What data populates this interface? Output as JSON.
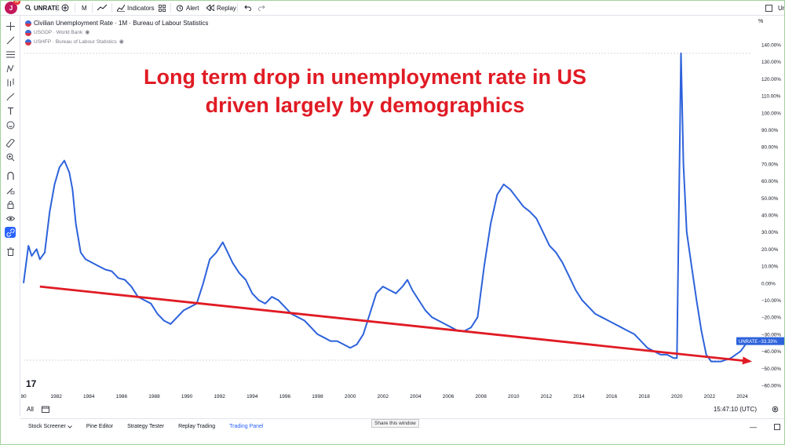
{
  "topbar": {
    "avatar_letter": "J",
    "avatar_badge": "11",
    "symbol": "UNRATE",
    "interval": "M",
    "indicators_label": "Indicators",
    "alert_label": "Alert",
    "replay_label": "Replay",
    "right_text": "Ur"
  },
  "legend": {
    "main": "Civilian Unemployment Rate · 1M · Bureau of Labour Statistics",
    "compare_1": "USGDP · World Bank",
    "compare_2": "USHFP · Bureau of Labour Statistics"
  },
  "annotation": {
    "line1": "Long term drop in unemployment rate in US",
    "line2": "driven largely by demographics"
  },
  "axis": {
    "unit": "%",
    "price_label": "UNRATE",
    "price_value": "−33.33%",
    "time": "15:47:10 (UTC)",
    "range_all": "All"
  },
  "bottombar": {
    "tabs": [
      "Stock Screener",
      "Pine Editor",
      "Strategy Tester",
      "Replay Trading",
      "Trading Panel"
    ],
    "share": "Share this window"
  },
  "colors": {
    "series": "#2d62db",
    "trend": "#e01b24",
    "label_bg": "#2d62db"
  },
  "chart_data": {
    "type": "line",
    "title": "Civilian Unemployment Rate · 1M · Bureau of Labour Statistics",
    "ylabel": "%",
    "ylim": [
      -60,
      140
    ],
    "y_ticks": [
      140,
      130,
      120,
      110,
      100,
      90,
      80,
      70,
      60,
      50,
      40,
      30,
      20,
      10,
      0,
      -10,
      -20,
      -30,
      -40,
      -50,
      -60
    ],
    "x_ticks": [
      "80",
      "1982",
      "1984",
      "1986",
      "1988",
      "1990",
      "1992",
      "1994",
      "1996",
      "1998",
      "2000",
      "2002",
      "2004",
      "2006",
      "2008",
      "2010",
      "2012",
      "2014",
      "2016",
      "2018",
      "2020",
      "2022",
      "2024"
    ],
    "xlim": [
      1980,
      2024.6
    ],
    "series": [
      {
        "name": "UNRATE",
        "x": [
          1980.0,
          1980.3,
          1980.5,
          1980.8,
          1981.0,
          1981.3,
          1981.6,
          1981.9,
          1982.2,
          1982.5,
          1982.8,
          1983.0,
          1983.2,
          1983.5,
          1983.8,
          1984.2,
          1984.6,
          1985.0,
          1985.4,
          1985.8,
          1986.2,
          1986.6,
          1987.0,
          1987.4,
          1987.8,
          1988.2,
          1988.6,
          1989.0,
          1989.4,
          1989.8,
          1990.2,
          1990.6,
          1991.0,
          1991.4,
          1991.8,
          1992.2,
          1992.5,
          1992.8,
          1993.2,
          1993.6,
          1994.0,
          1994.4,
          1994.8,
          1995.2,
          1995.6,
          1996.0,
          1996.4,
          1996.8,
          1997.2,
          1997.6,
          1998.0,
          1998.4,
          1998.8,
          1999.2,
          1999.6,
          2000.0,
          2000.4,
          2000.8,
          2001.2,
          2001.6,
          2002.0,
          2002.4,
          2002.8,
          2003.2,
          2003.5,
          2003.8,
          2004.2,
          2004.6,
          2005.0,
          2005.4,
          2005.8,
          2006.2,
          2006.6,
          2007.0,
          2007.4,
          2007.8,
          2008.2,
          2008.6,
          2009.0,
          2009.4,
          2009.8,
          2010.2,
          2010.6,
          2011.0,
          2011.4,
          2011.8,
          2012.2,
          2012.6,
          2013.0,
          2013.4,
          2013.8,
          2014.2,
          2014.6,
          2015.0,
          2015.4,
          2015.8,
          2016.2,
          2016.6,
          2017.0,
          2017.4,
          2017.8,
          2018.2,
          2018.6,
          2019.0,
          2019.4,
          2019.8,
          2020.0,
          2020.25,
          2020.4,
          2020.6,
          2020.9,
          2021.2,
          2021.5,
          2021.8,
          2022.1,
          2022.4,
          2022.7,
          2023.0,
          2023.3,
          2023.6,
          2023.9,
          2024.2,
          2024.5
        ],
        "values": [
          0,
          22,
          16,
          20,
          14,
          18,
          42,
          58,
          68,
          72,
          65,
          55,
          35,
          18,
          14,
          12,
          10,
          8,
          7,
          3,
          2,
          -2,
          -8,
          -10,
          -12,
          -18,
          -22,
          -24,
          -20,
          -16,
          -14,
          -12,
          0,
          14,
          18,
          24,
          18,
          12,
          6,
          2,
          -6,
          -10,
          -12,
          -8,
          -10,
          -14,
          -18,
          -20,
          -22,
          -26,
          -30,
          -32,
          -34,
          -34,
          -36,
          -38,
          -36,
          -30,
          -18,
          -6,
          -2,
          -4,
          -6,
          -2,
          2,
          -4,
          -10,
          -16,
          -20,
          -22,
          -24,
          -26,
          -28,
          -28,
          -26,
          -20,
          10,
          35,
          52,
          58,
          55,
          50,
          45,
          42,
          38,
          30,
          22,
          18,
          12,
          4,
          -4,
          -10,
          -14,
          -18,
          -20,
          -22,
          -24,
          -26,
          -28,
          -30,
          -34,
          -38,
          -40,
          -42,
          -42,
          -44,
          -44,
          135,
          70,
          30,
          10,
          -10,
          -28,
          -42,
          -46,
          -46,
          -46,
          -45,
          -44,
          -42,
          -40,
          -36,
          -34
        ]
      },
      {
        "name": "Trend",
        "x": [
          1981.0,
          2024.6
        ],
        "values": [
          -2,
          -46
        ]
      }
    ]
  }
}
